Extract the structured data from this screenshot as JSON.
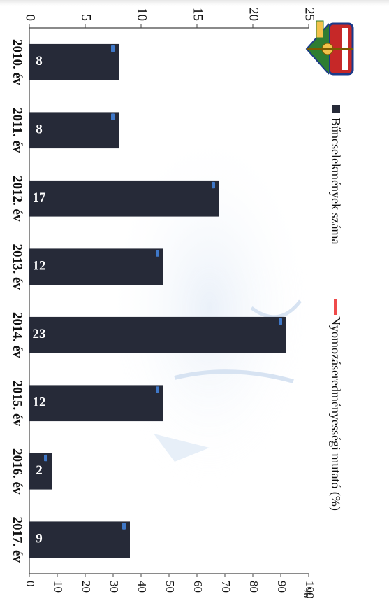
{
  "chart_data": {
    "type": "bar",
    "orientation": "rotated-90-clockwise",
    "categories": [
      "2010. év",
      "2011. év",
      "2012. év",
      "2013. év",
      "2014. év",
      "2015. év",
      "2016. év",
      "2017. év"
    ],
    "series": [
      {
        "name": "Bűncselekmények száma",
        "values": [
          8,
          8,
          17,
          12,
          23,
          12,
          2,
          9
        ],
        "color": "#262a38",
        "axis": "primary"
      },
      {
        "name": "Nyomozáseredményességi mutató (%)",
        "values": [
          null,
          null,
          null,
          null,
          null,
          null,
          null,
          null
        ],
        "color": "#ef4b4b",
        "axis": "secondary"
      }
    ],
    "data_labels": [
      "8",
      "8",
      "17",
      "12",
      "23",
      "12",
      "2",
      "9"
    ],
    "primary_axis": {
      "ticks": [
        "0",
        "5",
        "10",
        "15",
        "20",
        "25"
      ],
      "range": [
        0,
        25
      ]
    },
    "secondary_axis": {
      "ticks": [
        "0",
        "10",
        "20",
        "30",
        "40",
        "50",
        "60",
        "70",
        "80",
        "90",
        "100"
      ],
      "range": [
        0,
        100
      ],
      "unit": "%"
    },
    "legend_position": "top",
    "grid": false
  },
  "colors": {
    "bar": "#262a38",
    "bar_edge_highlight": "#3f78c8",
    "line": "#ef4b4b",
    "text": "#111111",
    "emblem_green": "#2e7d32",
    "emblem_red": "#c62828"
  },
  "emblem": {
    "icon": "police-crest-emblem"
  }
}
